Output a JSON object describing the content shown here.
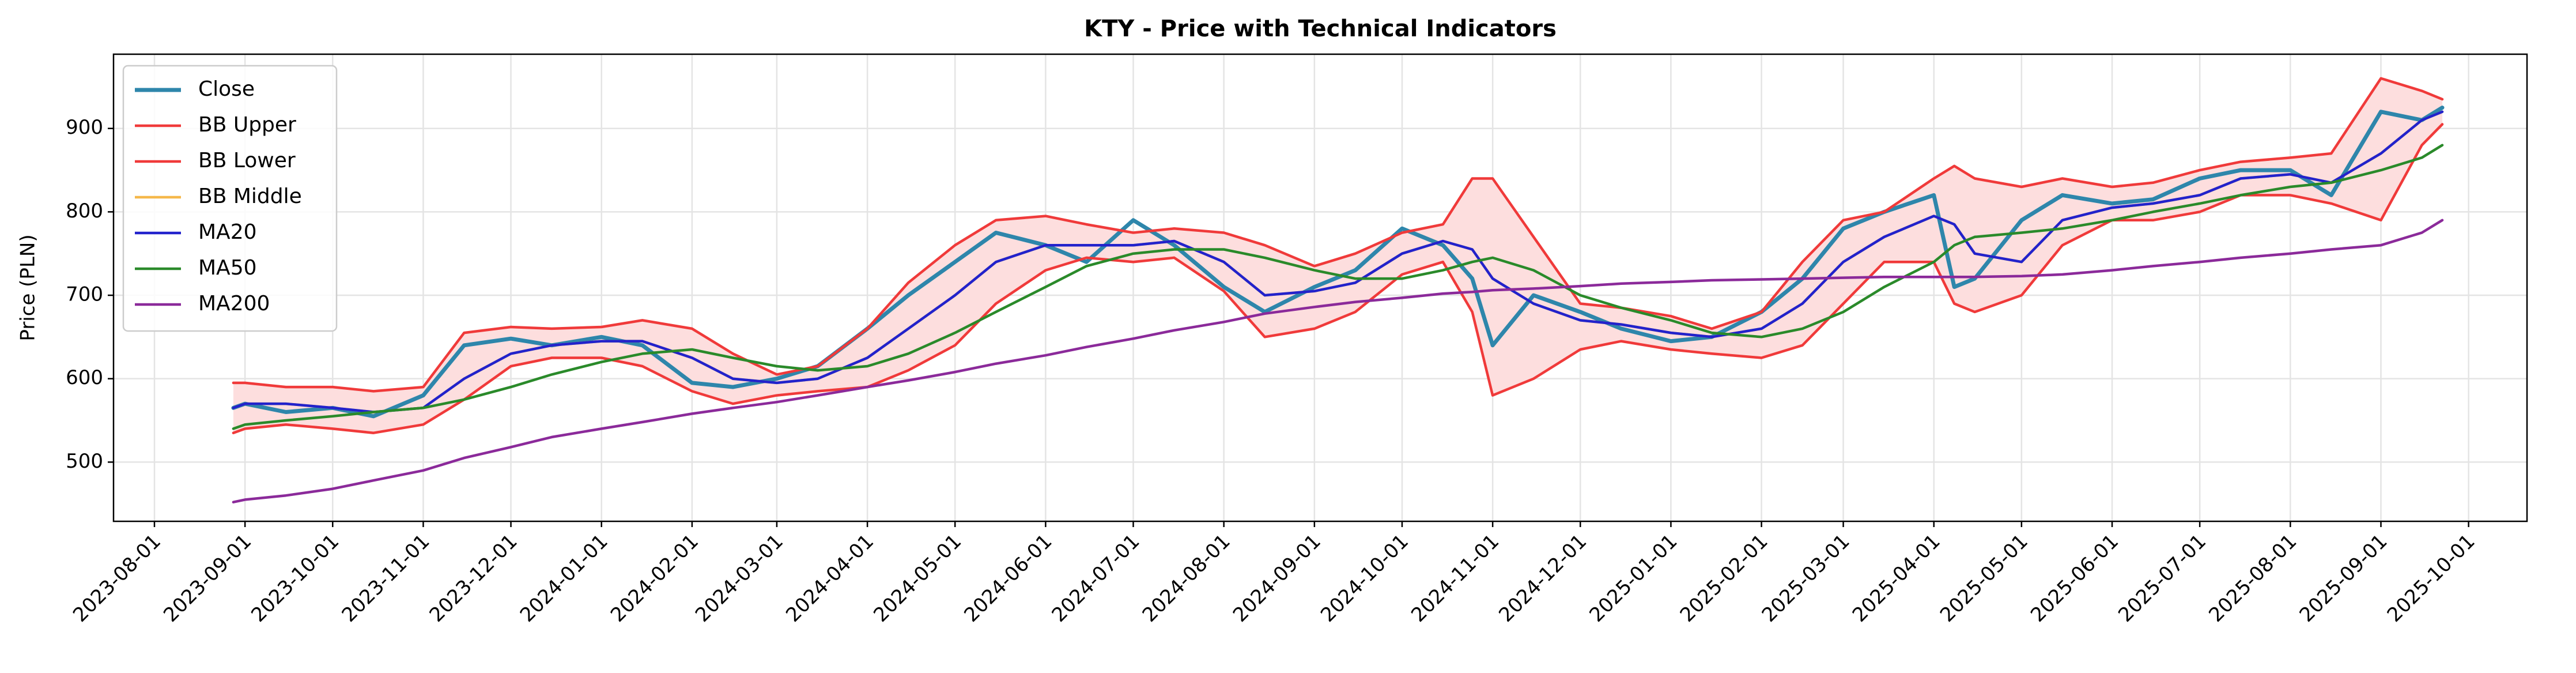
{
  "chart_data": {
    "type": "line",
    "title": "KTY - Price with Technical Indicators",
    "y_label": "Price (PLN)",
    "x": [
      "2023-08-28",
      "2023-09-01",
      "2023-09-15",
      "2023-10-01",
      "2023-10-15",
      "2023-11-01",
      "2023-11-15",
      "2023-12-01",
      "2023-12-15",
      "2024-01-01",
      "2024-01-15",
      "2024-02-01",
      "2024-02-15",
      "2024-03-01",
      "2024-03-15",
      "2024-04-01",
      "2024-04-15",
      "2024-05-01",
      "2024-05-15",
      "2024-06-01",
      "2024-06-15",
      "2024-07-01",
      "2024-07-15",
      "2024-08-01",
      "2024-08-15",
      "2024-09-01",
      "2024-09-15",
      "2024-10-01",
      "2024-10-15",
      "2024-10-25",
      "2024-11-01",
      "2024-11-15",
      "2024-12-01",
      "2024-12-15",
      "2025-01-01",
      "2025-01-15",
      "2025-02-01",
      "2025-02-15",
      "2025-03-01",
      "2025-03-15",
      "2025-04-01",
      "2025-04-08",
      "2025-04-15",
      "2025-05-01",
      "2025-05-15",
      "2025-06-01",
      "2025-06-15",
      "2025-07-01",
      "2025-07-15",
      "2025-08-01",
      "2025-08-15",
      "2025-09-01",
      "2025-09-15",
      "2025-09-22"
    ],
    "series": [
      {
        "name": "Close",
        "color": "#2e86ab",
        "width": 7,
        "values": [
          565,
          570,
          560,
          565,
          555,
          580,
          640,
          648,
          640,
          650,
          640,
          595,
          590,
          600,
          615,
          660,
          700,
          740,
          775,
          760,
          740,
          790,
          760,
          710,
          680,
          710,
          730,
          780,
          760,
          720,
          640,
          700,
          680,
          660,
          645,
          650,
          680,
          720,
          780,
          800,
          820,
          710,
          720,
          790,
          820,
          810,
          815,
          840,
          850,
          850,
          820,
          920,
          910,
          925
        ]
      },
      {
        "name": "BB Upper",
        "color": "#f03a3a",
        "width": 4.5,
        "values": [
          595,
          595,
          590,
          590,
          585,
          590,
          655,
          662,
          660,
          662,
          670,
          660,
          630,
          605,
          615,
          660,
          715,
          760,
          790,
          795,
          785,
          775,
          780,
          775,
          760,
          735,
          750,
          775,
          785,
          840,
          840,
          770,
          690,
          685,
          675,
          660,
          680,
          740,
          790,
          800,
          840,
          855,
          840,
          830,
          840,
          830,
          835,
          850,
          860,
          865,
          870,
          960,
          945,
          935
        ]
      },
      {
        "name": "BB Lower",
        "color": "#f03a3a",
        "width": 4.5,
        "values": [
          535,
          540,
          545,
          540,
          535,
          545,
          575,
          615,
          625,
          625,
          615,
          585,
          570,
          580,
          585,
          590,
          610,
          640,
          690,
          730,
          745,
          740,
          745,
          705,
          650,
          660,
          680,
          725,
          740,
          680,
          580,
          600,
          635,
          645,
          635,
          630,
          625,
          640,
          690,
          740,
          740,
          690,
          680,
          700,
          760,
          790,
          790,
          800,
          820,
          820,
          810,
          790,
          880,
          905
        ]
      },
      {
        "name": "BB Middle",
        "color": "#f5b84a",
        "width": 4.5,
        "values": [
          565,
          570,
          570,
          565,
          560,
          565,
          600,
          630,
          640,
          645,
          645,
          625,
          600,
          595,
          600,
          625,
          660,
          700,
          740,
          760,
          760,
          760,
          765,
          740,
          700,
          705,
          715,
          750,
          765,
          755,
          720,
          690,
          670,
          665,
          655,
          650,
          660,
          690,
          740,
          770,
          795,
          785,
          750,
          740,
          790,
          805,
          810,
          820,
          840,
          845,
          835,
          870,
          910,
          920
        ]
      },
      {
        "name": "MA20",
        "color": "#2222cc",
        "width": 4.5,
        "values": [
          565,
          570,
          570,
          565,
          560,
          565,
          600,
          630,
          640,
          645,
          645,
          625,
          600,
          595,
          600,
          625,
          660,
          700,
          740,
          760,
          760,
          760,
          765,
          740,
          700,
          705,
          715,
          750,
          765,
          755,
          720,
          690,
          670,
          665,
          655,
          650,
          660,
          690,
          740,
          770,
          795,
          785,
          750,
          740,
          790,
          805,
          810,
          820,
          840,
          845,
          835,
          870,
          910,
          920
        ]
      },
      {
        "name": "MA50",
        "color": "#2a8a2a",
        "width": 4.5,
        "values": [
          540,
          545,
          550,
          555,
          560,
          565,
          575,
          590,
          605,
          620,
          630,
          635,
          625,
          615,
          610,
          615,
          630,
          655,
          680,
          710,
          735,
          750,
          755,
          755,
          745,
          730,
          720,
          720,
          730,
          740,
          745,
          730,
          700,
          685,
          670,
          655,
          650,
          660,
          680,
          710,
          740,
          760,
          770,
          775,
          780,
          790,
          800,
          810,
          820,
          830,
          835,
          850,
          865,
          880
        ]
      },
      {
        "name": "MA200",
        "color": "#8b2a9a",
        "width": 4.5,
        "values": [
          452,
          455,
          460,
          468,
          478,
          490,
          505,
          518,
          530,
          540,
          548,
          558,
          565,
          572,
          580,
          590,
          598,
          608,
          618,
          628,
          638,
          648,
          658,
          668,
          678,
          686,
          692,
          697,
          702,
          704,
          706,
          708,
          711,
          714,
          716,
          718,
          719,
          720,
          721,
          722,
          722,
          722,
          722,
          723,
          725,
          730,
          735,
          740,
          745,
          750,
          755,
          760,
          775,
          790
        ]
      }
    ],
    "band_color": "#fddede",
    "xlim": [
      "2023-07-18",
      "2025-10-21"
    ],
    "xticks": [
      "2023-08-01",
      "2023-09-01",
      "2023-10-01",
      "2023-11-01",
      "2023-12-01",
      "2024-01-01",
      "2024-02-01",
      "2024-03-01",
      "2024-04-01",
      "2024-05-01",
      "2024-06-01",
      "2024-07-01",
      "2024-08-01",
      "2024-09-01",
      "2024-10-01",
      "2024-11-01",
      "2024-12-01",
      "2025-01-01",
      "2025-02-01",
      "2025-03-01",
      "2025-04-01",
      "2025-05-01",
      "2025-06-01",
      "2025-07-01",
      "2025-08-01",
      "2025-09-01",
      "2025-10-01"
    ],
    "ylim": [
      429,
      989
    ],
    "yticks": [
      500,
      600,
      700,
      800,
      900
    ],
    "grid": true,
    "legend": "upper left"
  }
}
